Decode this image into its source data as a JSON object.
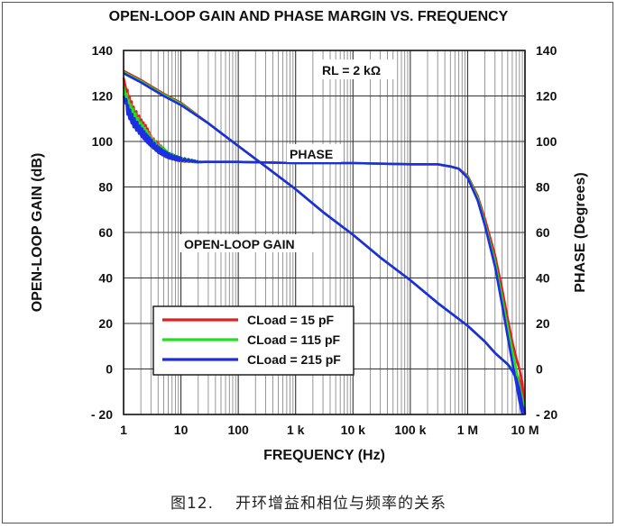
{
  "chart_data": {
    "type": "line",
    "title": "OPEN-LOOP GAIN AND PHASE MARGIN VS. FREQUENCY",
    "xlabel": "FREQUENCY (Hz)",
    "ylabel": "OPEN-LOOP GAIN (dB)",
    "y2label": "PHASE (Degrees)",
    "x_scale": "log",
    "xlim": [
      1,
      10000000
    ],
    "ylim": [
      -20,
      140
    ],
    "y2lim": [
      -20,
      140
    ],
    "x_ticks": [
      {
        "value": 1,
        "label": "1"
      },
      {
        "value": 10,
        "label": "10"
      },
      {
        "value": 100,
        "label": "100"
      },
      {
        "value": 1000,
        "label": "1 k"
      },
      {
        "value": 10000,
        "label": "10 k"
      },
      {
        "value": 100000,
        "label": "100 k"
      },
      {
        "value": 1000000,
        "label": "1 M"
      },
      {
        "value": 10000000,
        "label": "10 M"
      }
    ],
    "y_ticks": [
      {
        "value": 140,
        "label": "140"
      },
      {
        "value": 120,
        "label": "120"
      },
      {
        "value": 100,
        "label": "100"
      },
      {
        "value": 80,
        "label": "80"
      },
      {
        "value": 60,
        "label": "60"
      },
      {
        "value": 40,
        "label": "40"
      },
      {
        "value": 20,
        "label": "20"
      },
      {
        "value": 0,
        "label": "0"
      },
      {
        "value": -20,
        "label": "- 20"
      }
    ],
    "grid": true,
    "legend_position": "lower-left",
    "annotations": {
      "rl": "RL = 2 kΩ",
      "phase": "PHASE",
      "gain": "OPEN-LOOP GAIN"
    },
    "series": [
      {
        "name": "CLoad = 15 pF",
        "color": "#e02020",
        "gain": [
          [
            1,
            131
          ],
          [
            2,
            127
          ],
          [
            5,
            121
          ],
          [
            10,
            117
          ],
          [
            30,
            108
          ],
          [
            100,
            98
          ],
          [
            300,
            89
          ],
          [
            1000,
            79
          ],
          [
            3000,
            69
          ],
          [
            10000,
            59
          ],
          [
            30000,
            49
          ],
          [
            100000,
            39
          ],
          [
            300000,
            29
          ],
          [
            1000000,
            19
          ],
          [
            2000000,
            12
          ],
          [
            3000000,
            7
          ],
          [
            5000000,
            2
          ],
          [
            6000000,
            0
          ],
          [
            7000000,
            -2
          ],
          [
            8000000,
            -5
          ],
          [
            9000000,
            -10
          ],
          [
            10000000,
            -19
          ]
        ],
        "phase": [
          [
            1,
            128
          ],
          [
            1.2,
            119
          ],
          [
            1.5,
            113
          ],
          [
            2,
            108
          ],
          [
            2.5,
            105
          ],
          [
            3,
            101
          ],
          [
            4,
            98
          ],
          [
            5,
            96
          ],
          [
            6,
            94
          ],
          [
            8,
            93
          ],
          [
            10,
            92
          ],
          [
            15,
            91.5
          ],
          [
            20,
            91
          ],
          [
            50,
            91
          ],
          [
            100,
            91
          ],
          [
            1000,
            90.5
          ],
          [
            10000,
            90.5
          ],
          [
            100000,
            90
          ],
          [
            300000,
            90
          ],
          [
            500000,
            89
          ],
          [
            700000,
            88
          ],
          [
            1000000,
            85
          ],
          [
            1500000,
            76
          ],
          [
            2000000,
            66
          ],
          [
            3000000,
            50
          ],
          [
            4000000,
            35
          ],
          [
            5000000,
            22
          ],
          [
            6000000,
            12
          ],
          [
            7000000,
            5
          ],
          [
            8000000,
            0
          ],
          [
            9000000,
            -6
          ],
          [
            10000000,
            -20
          ]
        ]
      },
      {
        "name": "CLoad = 115 pF",
        "color": "#20e020",
        "gain": [
          [
            1,
            130.5
          ],
          [
            2,
            126.5
          ],
          [
            5,
            120.5
          ],
          [
            10,
            116.5
          ],
          [
            30,
            108
          ],
          [
            100,
            98
          ],
          [
            300,
            89
          ],
          [
            1000,
            79
          ],
          [
            3000,
            69
          ],
          [
            10000,
            59
          ],
          [
            30000,
            49
          ],
          [
            100000,
            39
          ],
          [
            300000,
            29
          ],
          [
            1000000,
            19
          ],
          [
            2000000,
            12
          ],
          [
            3000000,
            7
          ],
          [
            5000000,
            2
          ],
          [
            6000000,
            0
          ],
          [
            7000000,
            -3
          ],
          [
            8000000,
            -7
          ],
          [
            9000000,
            -13
          ],
          [
            10000000,
            -20
          ]
        ],
        "phase": [
          [
            1,
            124
          ],
          [
            1.2,
            116
          ],
          [
            1.5,
            111
          ],
          [
            2,
            106
          ],
          [
            2.5,
            103
          ],
          [
            3,
            100
          ],
          [
            4,
            97
          ],
          [
            5,
            95.5
          ],
          [
            6,
            94
          ],
          [
            8,
            93
          ],
          [
            10,
            92
          ],
          [
            15,
            91.5
          ],
          [
            20,
            91
          ],
          [
            50,
            91
          ],
          [
            100,
            91
          ],
          [
            1000,
            90.5
          ],
          [
            10000,
            90.5
          ],
          [
            100000,
            90
          ],
          [
            300000,
            90
          ],
          [
            500000,
            89
          ],
          [
            700000,
            88
          ],
          [
            1000000,
            84.5
          ],
          [
            1500000,
            75
          ],
          [
            2000000,
            64
          ],
          [
            3000000,
            47
          ],
          [
            4000000,
            31
          ],
          [
            5000000,
            18
          ],
          [
            6000000,
            8
          ],
          [
            7000000,
            0
          ],
          [
            8000000,
            -8
          ],
          [
            9000000,
            -15
          ],
          [
            10000000,
            -20
          ]
        ]
      },
      {
        "name": "CLoad = 215 pF",
        "color": "#1c2ee0",
        "gain": [
          [
            1,
            130
          ],
          [
            2,
            126
          ],
          [
            5,
            120
          ],
          [
            10,
            116
          ],
          [
            30,
            108
          ],
          [
            100,
            98
          ],
          [
            300,
            89
          ],
          [
            1000,
            79
          ],
          [
            3000,
            69
          ],
          [
            10000,
            59
          ],
          [
            30000,
            49
          ],
          [
            100000,
            39
          ],
          [
            300000,
            29
          ],
          [
            1000000,
            19
          ],
          [
            2000000,
            12
          ],
          [
            3000000,
            7
          ],
          [
            5000000,
            2
          ],
          [
            6000000,
            -1
          ],
          [
            7000000,
            -4
          ],
          [
            8000000,
            -9
          ],
          [
            9000000,
            -16
          ],
          [
            10000000,
            -20
          ]
        ],
        "phase": [
          [
            1,
            120
          ],
          [
            1.2,
            113
          ],
          [
            1.5,
            108
          ],
          [
            2,
            104
          ],
          [
            2.5,
            101
          ],
          [
            3,
            99
          ],
          [
            4,
            96
          ],
          [
            5,
            94.5
          ],
          [
            6,
            93.5
          ],
          [
            8,
            92.5
          ],
          [
            10,
            92
          ],
          [
            15,
            91.5
          ],
          [
            20,
            91
          ],
          [
            50,
            91
          ],
          [
            100,
            91
          ],
          [
            1000,
            90.5
          ],
          [
            10000,
            90.5
          ],
          [
            100000,
            90
          ],
          [
            300000,
            90
          ],
          [
            500000,
            89
          ],
          [
            700000,
            88
          ],
          [
            1000000,
            84
          ],
          [
            1500000,
            74
          ],
          [
            2000000,
            63
          ],
          [
            3000000,
            45
          ],
          [
            4000000,
            28
          ],
          [
            5000000,
            14
          ],
          [
            6000000,
            3
          ],
          [
            7000000,
            -6
          ],
          [
            8000000,
            -14
          ],
          [
            9000000,
            -20
          ]
        ]
      }
    ]
  },
  "caption": {
    "number": "图12.",
    "text": "开环增益和相位与频率的关系"
  }
}
